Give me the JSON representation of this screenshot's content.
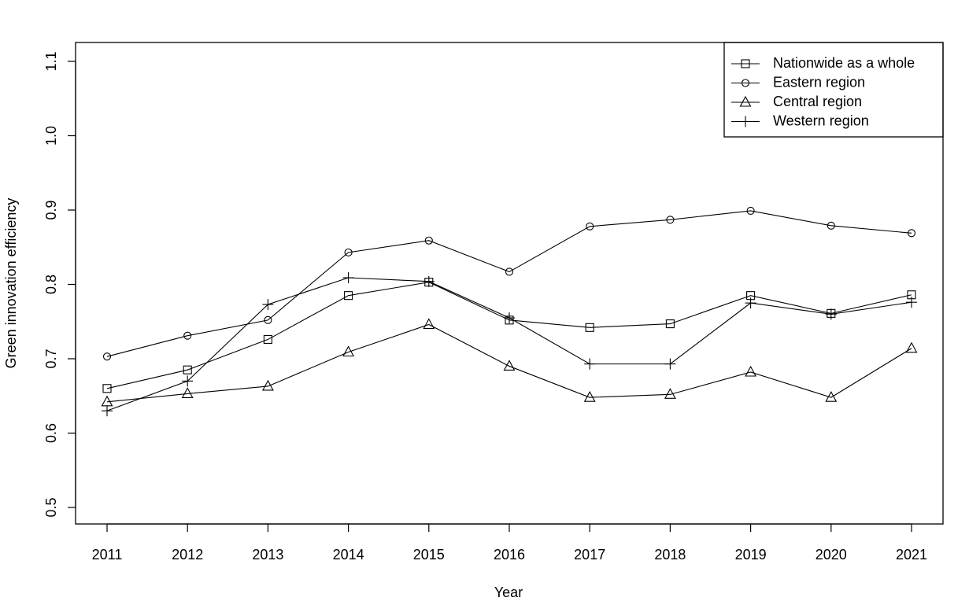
{
  "chart_data": {
    "type": "line",
    "title": "",
    "xlabel": "Year",
    "ylabel": "Green innovation efficiency",
    "x": [
      "2011",
      "2012",
      "2013",
      "2014",
      "2015",
      "2016",
      "2017",
      "2018",
      "2019",
      "2020",
      "2021"
    ],
    "yticks": [
      "0.5",
      "0.6",
      "0.7",
      "0.8",
      "0.9",
      "1.0",
      "1.1"
    ],
    "ylim": [
      0.48,
      1.13
    ],
    "grid": false,
    "legend_position": "top-right",
    "series": [
      {
        "name": "Nationwide as a whole",
        "marker": "square",
        "values": [
          0.66,
          0.685,
          0.726,
          0.785,
          0.803,
          0.752,
          0.742,
          0.747,
          0.785,
          0.761,
          0.786
        ]
      },
      {
        "name": "Eastern region",
        "marker": "circle",
        "values": [
          0.703,
          0.731,
          0.752,
          0.843,
          0.859,
          0.817,
          0.878,
          0.887,
          0.899,
          0.879,
          0.869
        ]
      },
      {
        "name": "Central region",
        "marker": "triangle",
        "values": [
          0.642,
          0.653,
          0.663,
          0.709,
          0.746,
          0.69,
          0.648,
          0.652,
          0.682,
          0.648,
          0.714
        ]
      },
      {
        "name": "Western region",
        "marker": "plus",
        "values": [
          0.63,
          0.67,
          0.773,
          0.809,
          0.804,
          0.755,
          0.693,
          0.693,
          0.775,
          0.76,
          0.776
        ]
      }
    ]
  }
}
